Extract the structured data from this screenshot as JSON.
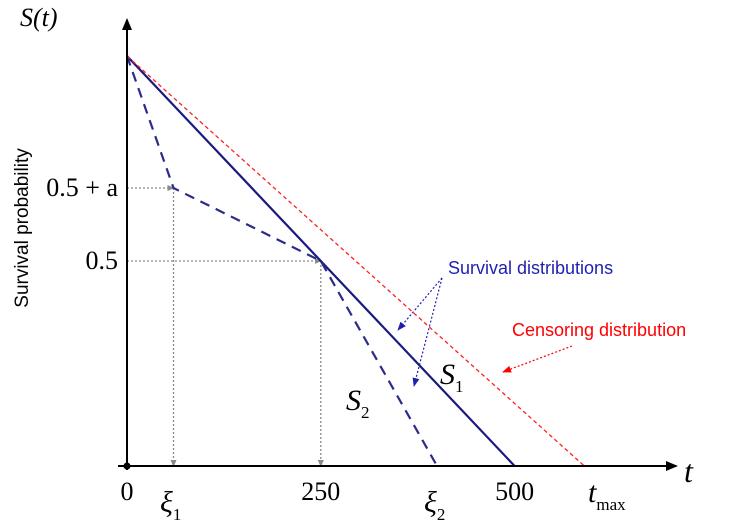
{
  "chart_data": {
    "type": "line",
    "title": "",
    "xlabel": "t",
    "ylabel": "S(t)",
    "ylabel_side": "Survival probability",
    "xlim": [
      0,
      580
    ],
    "ylim": [
      0,
      1
    ],
    "grid": false,
    "x_ticks": [
      {
        "value": 0,
        "label": "0"
      },
      {
        "value": 250,
        "label": "250"
      },
      {
        "value": 500,
        "label": "500"
      }
    ],
    "y_ticks": [
      {
        "value": 0.5,
        "label": "0.5"
      },
      {
        "value": 0.678,
        "label": "0.5 + a"
      }
    ],
    "x_symbols": {
      "xi1": {
        "value": 60,
        "base": "ξ",
        "sub": "1"
      },
      "xi2": {
        "value": 400,
        "base": "ξ",
        "sub": "2"
      },
      "tmax": {
        "value": 590,
        "base": "t",
        "sub": "max"
      }
    },
    "series": [
      {
        "name": "S1",
        "label_base": "S",
        "label_sub": "1",
        "style": "solid",
        "color": "#1a1a80",
        "x": [
          0,
          500
        ],
        "y": [
          1,
          0
        ]
      },
      {
        "name": "S2",
        "label_base": "S",
        "label_sub": "2",
        "style": "dashed",
        "color": "#2b2b8a",
        "x": [
          0,
          60,
          250,
          400
        ],
        "y": [
          1,
          0.678,
          0.5,
          0
        ]
      },
      {
        "name": "Censoring",
        "style": "dotted",
        "color": "#ff2020",
        "x": [
          0,
          590
        ],
        "y": [
          1,
          0
        ]
      }
    ],
    "guides": [
      {
        "from": [
          0,
          0.678
        ],
        "to": [
          60,
          0.678
        ],
        "arrow": "end"
      },
      {
        "from": [
          60,
          0.678
        ],
        "to": [
          60,
          0
        ],
        "arrow": "end"
      },
      {
        "from": [
          0,
          0.5
        ],
        "to": [
          250,
          0.5
        ],
        "arrow": "end"
      },
      {
        "from": [
          250,
          0.5
        ],
        "to": [
          250,
          0
        ],
        "arrow": "end"
      }
    ],
    "annotations": [
      {
        "text": "Survival distributions",
        "color": "#1f1fb0",
        "targets": [
          "S1",
          "S2"
        ]
      },
      {
        "text": "Censoring distribution",
        "color": "#ff0000",
        "targets": [
          "Censoring"
        ]
      }
    ],
    "axis_color": "#000000",
    "guide_color": "#8a8a8a"
  }
}
